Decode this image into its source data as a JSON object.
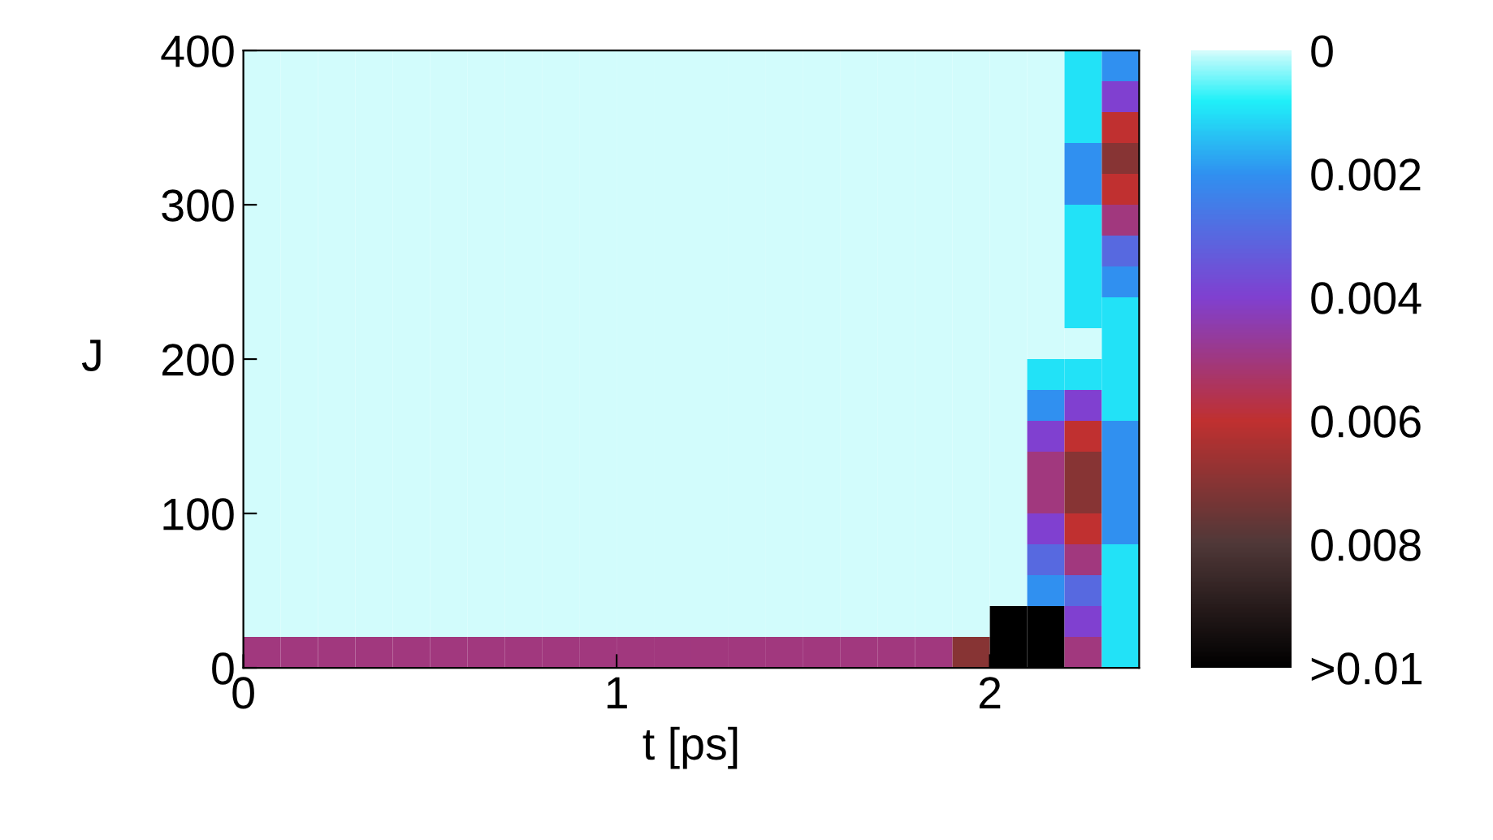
{
  "chart_data": {
    "type": "heatmap",
    "xlabel": "t [ps]",
    "ylabel": "J",
    "x": [
      0.05,
      0.15,
      0.25,
      0.35,
      0.45,
      0.55,
      0.65,
      0.75,
      0.85,
      0.95,
      1.05,
      1.15,
      1.25,
      1.35,
      1.45,
      1.55,
      1.65,
      1.75,
      1.85,
      1.95,
      2.05,
      2.15,
      2.25,
      2.35
    ],
    "y": [
      390,
      370,
      350,
      330,
      310,
      290,
      270,
      250,
      230,
      210,
      190,
      170,
      150,
      130,
      110,
      90,
      70,
      50,
      30,
      10
    ],
    "xlim": [
      0,
      2.4
    ],
    "xticks": [
      0,
      1,
      2
    ],
    "ylim": [
      0,
      400
    ],
    "yticks": [
      0,
      100,
      200,
      300,
      400
    ],
    "clim": [
      0,
      0.01
    ],
    "cticks": [
      0,
      0.002,
      0.004,
      0.006,
      0.008,
      {
        "value": 0.01,
        "label": ">0.01"
      }
    ],
    "cells": [
      [
        0,
        0,
        0,
        0,
        0,
        0,
        0,
        0,
        0,
        0,
        0,
        0,
        0,
        0,
        0,
        0,
        0,
        0,
        0,
        0,
        0,
        0,
        0.001,
        0.002
      ],
      [
        0,
        0,
        0,
        0,
        0,
        0,
        0,
        0,
        0,
        0,
        0,
        0,
        0,
        0,
        0,
        0,
        0,
        0,
        0,
        0,
        0,
        0,
        0.001,
        0.004
      ],
      [
        0,
        0,
        0,
        0,
        0,
        0,
        0,
        0,
        0,
        0,
        0,
        0,
        0,
        0,
        0,
        0,
        0,
        0,
        0,
        0,
        0,
        0,
        0.001,
        0.006
      ],
      [
        0,
        0,
        0,
        0,
        0,
        0,
        0,
        0,
        0,
        0,
        0,
        0,
        0,
        0,
        0,
        0,
        0,
        0,
        0,
        0,
        0,
        0,
        0.002,
        0.007
      ],
      [
        0,
        0,
        0,
        0,
        0,
        0,
        0,
        0,
        0,
        0,
        0,
        0,
        0,
        0,
        0,
        0,
        0,
        0,
        0,
        0,
        0,
        0,
        0.002,
        0.006
      ],
      [
        0,
        0,
        0,
        0,
        0,
        0,
        0,
        0,
        0,
        0,
        0,
        0,
        0,
        0,
        0,
        0,
        0,
        0,
        0,
        0,
        0,
        0,
        0.001,
        0.005
      ],
      [
        0,
        0,
        0,
        0,
        0,
        0,
        0,
        0,
        0,
        0,
        0,
        0,
        0,
        0,
        0,
        0,
        0,
        0,
        0,
        0,
        0,
        0,
        0.001,
        0.003
      ],
      [
        0,
        0,
        0,
        0,
        0,
        0,
        0,
        0,
        0,
        0,
        0,
        0,
        0,
        0,
        0,
        0,
        0,
        0,
        0,
        0,
        0,
        0,
        0.001,
        0.002
      ],
      [
        0,
        0,
        0,
        0,
        0,
        0,
        0,
        0,
        0,
        0,
        0,
        0,
        0,
        0,
        0,
        0,
        0,
        0,
        0,
        0,
        0,
        0,
        0.001,
        0.001
      ],
      [
        0,
        0,
        0,
        0,
        0,
        0,
        0,
        0,
        0,
        0,
        0,
        0,
        0,
        0,
        0,
        0,
        0,
        0,
        0,
        0,
        0,
        0,
        0,
        0.001
      ],
      [
        0,
        0,
        0,
        0,
        0,
        0,
        0,
        0,
        0,
        0,
        0,
        0,
        0,
        0,
        0,
        0,
        0,
        0,
        0,
        0,
        0,
        0.001,
        0.001,
        0.001
      ],
      [
        0,
        0,
        0,
        0,
        0,
        0,
        0,
        0,
        0,
        0,
        0,
        0,
        0,
        0,
        0,
        0,
        0,
        0,
        0,
        0,
        0,
        0.002,
        0.004,
        0.001
      ],
      [
        0,
        0,
        0,
        0,
        0,
        0,
        0,
        0,
        0,
        0,
        0,
        0,
        0,
        0,
        0,
        0,
        0,
        0,
        0,
        0,
        0,
        0.004,
        0.006,
        0.002
      ],
      [
        0,
        0,
        0,
        0,
        0,
        0,
        0,
        0,
        0,
        0,
        0,
        0,
        0,
        0,
        0,
        0,
        0,
        0,
        0,
        0,
        0,
        0.005,
        0.007,
        0.002
      ],
      [
        0,
        0,
        0,
        0,
        0,
        0,
        0,
        0,
        0,
        0,
        0,
        0,
        0,
        0,
        0,
        0,
        0,
        0,
        0,
        0,
        0,
        0.005,
        0.007,
        0.002
      ],
      [
        0,
        0,
        0,
        0,
        0,
        0,
        0,
        0,
        0,
        0,
        0,
        0,
        0,
        0,
        0,
        0,
        0,
        0,
        0,
        0,
        0,
        0.004,
        0.006,
        0.002
      ],
      [
        0,
        0,
        0,
        0,
        0,
        0,
        0,
        0,
        0,
        0,
        0,
        0,
        0,
        0,
        0,
        0,
        0,
        0,
        0,
        0,
        0,
        0.003,
        0.005,
        0.001
      ],
      [
        0,
        0,
        0,
        0,
        0,
        0,
        0,
        0,
        0,
        0,
        0,
        0,
        0,
        0,
        0,
        0,
        0,
        0,
        0,
        0,
        0,
        0.002,
        0.003,
        0.001
      ],
      [
        0,
        0,
        0,
        0,
        0,
        0,
        0,
        0,
        0,
        0,
        0,
        0,
        0,
        0,
        0,
        0,
        0,
        0,
        0,
        0,
        0.01,
        0.01,
        0.004,
        0.001
      ],
      [
        0.005,
        0.005,
        0.005,
        0.005,
        0.005,
        0.005,
        0.005,
        0.005,
        0.005,
        0.005,
        0.005,
        0.005,
        0.005,
        0.005,
        0.005,
        0.005,
        0.005,
        0.005,
        0.005,
        0.007,
        0.01,
        0.01,
        0.005,
        0.001
      ]
    ]
  }
}
